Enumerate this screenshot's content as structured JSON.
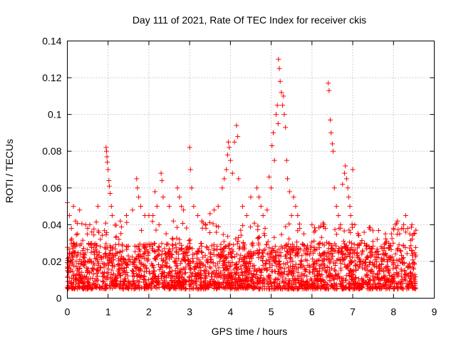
{
  "chart_data": {
    "type": "scatter",
    "title": "Day 111 of 2021, Rate Of TEC Index for receiver ckis",
    "xlabel": "GPS time / hours",
    "ylabel": "ROTI / TECUs",
    "xlim": [
      0,
      9
    ],
    "ylim": [
      0,
      0.14
    ],
    "xticks": [
      "0",
      "1",
      "2",
      "3",
      "4",
      "5",
      "6",
      "7",
      "8",
      "9"
    ],
    "yticks": [
      "0",
      "0.02",
      "0.04",
      "0.06",
      "0.08",
      "0.1",
      "0.12",
      "0.14"
    ],
    "grid": true,
    "marker": "+",
    "color": "#ff0000",
    "data_span_hours": [
      0,
      8.55
    ],
    "baseline_band": [
      0.005,
      0.03
    ],
    "series": [
      {
        "name": "ROTI",
        "points": [
          [
            0.0,
            0.052
          ],
          [
            0.05,
            0.045
          ],
          [
            0.1,
            0.038
          ],
          [
            0.15,
            0.05
          ],
          [
            0.2,
            0.042
          ],
          [
            0.25,
            0.035
          ],
          [
            0.3,
            0.048
          ],
          [
            0.45,
            0.04
          ],
          [
            0.5,
            0.038
          ],
          [
            0.55,
            0.04
          ],
          [
            0.6,
            0.036
          ],
          [
            0.75,
            0.05
          ],
          [
            0.95,
            0.082
          ],
          [
            0.96,
            0.08
          ],
          [
            0.97,
            0.077
          ],
          [
            0.98,
            0.074
          ],
          [
            1.0,
            0.07
          ],
          [
            1.02,
            0.064
          ],
          [
            1.03,
            0.061
          ],
          [
            1.05,
            0.057
          ],
          [
            1.08,
            0.05
          ],
          [
            1.1,
            0.045
          ],
          [
            1.3,
            0.042
          ],
          [
            1.45,
            0.045
          ],
          [
            1.6,
            0.048
          ],
          [
            1.7,
            0.065
          ],
          [
            1.72,
            0.06
          ],
          [
            1.75,
            0.055
          ],
          [
            1.8,
            0.05
          ],
          [
            1.9,
            0.045
          ],
          [
            2.0,
            0.045
          ],
          [
            2.1,
            0.045
          ],
          [
            2.15,
            0.058
          ],
          [
            2.2,
            0.05
          ],
          [
            2.25,
            0.04
          ],
          [
            2.3,
            0.068
          ],
          [
            2.32,
            0.064
          ],
          [
            2.35,
            0.055
          ],
          [
            2.5,
            0.05
          ],
          [
            2.6,
            0.042
          ],
          [
            2.7,
            0.06
          ],
          [
            2.75,
            0.055
          ],
          [
            2.8,
            0.05
          ],
          [
            2.85,
            0.048
          ],
          [
            3.0,
            0.082
          ],
          [
            3.02,
            0.07
          ],
          [
            3.05,
            0.06
          ],
          [
            3.1,
            0.05
          ],
          [
            3.2,
            0.045
          ],
          [
            3.3,
            0.042
          ],
          [
            3.4,
            0.038
          ],
          [
            3.5,
            0.046
          ],
          [
            3.6,
            0.048
          ],
          [
            3.7,
            0.05
          ],
          [
            3.8,
            0.06
          ],
          [
            3.85,
            0.065
          ],
          [
            3.9,
            0.07
          ],
          [
            3.93,
            0.078
          ],
          [
            3.95,
            0.085
          ],
          [
            3.97,
            0.082
          ],
          [
            4.0,
            0.075
          ],
          [
            4.05,
            0.068
          ],
          [
            4.1,
            0.085
          ],
          [
            4.15,
            0.094
          ],
          [
            4.18,
            0.088
          ],
          [
            4.2,
            0.065
          ],
          [
            4.3,
            0.05
          ],
          [
            4.4,
            0.045
          ],
          [
            4.5,
            0.055
          ],
          [
            4.65,
            0.06
          ],
          [
            4.7,
            0.055
          ],
          [
            4.75,
            0.05
          ],
          [
            4.8,
            0.045
          ],
          [
            4.85,
            0.038
          ],
          [
            4.9,
            0.048
          ],
          [
            4.95,
            0.066
          ],
          [
            5.0,
            0.06
          ],
          [
            5.02,
            0.083
          ],
          [
            5.05,
            0.09
          ],
          [
            5.08,
            0.075
          ],
          [
            5.12,
            0.1
          ],
          [
            5.15,
            0.105
          ],
          [
            5.17,
            0.095
          ],
          [
            5.18,
            0.13
          ],
          [
            5.2,
            0.125
          ],
          [
            5.22,
            0.118
          ],
          [
            5.25,
            0.112
          ],
          [
            5.28,
            0.105
          ],
          [
            5.3,
            0.11
          ],
          [
            5.32,
            0.1
          ],
          [
            5.35,
            0.093
          ],
          [
            5.38,
            0.075
          ],
          [
            5.4,
            0.065
          ],
          [
            5.45,
            0.058
          ],
          [
            5.5,
            0.045
          ],
          [
            5.55,
            0.055
          ],
          [
            5.6,
            0.05
          ],
          [
            5.65,
            0.045
          ],
          [
            5.7,
            0.038
          ],
          [
            5.8,
            0.035
          ],
          [
            6.0,
            0.04
          ],
          [
            6.2,
            0.03
          ],
          [
            6.4,
            0.117
          ],
          [
            6.42,
            0.113
          ],
          [
            6.45,
            0.097
          ],
          [
            6.47,
            0.09
          ],
          [
            6.5,
            0.084
          ],
          [
            6.52,
            0.08
          ],
          [
            6.55,
            0.06
          ],
          [
            6.6,
            0.05
          ],
          [
            6.65,
            0.045
          ],
          [
            6.7,
            0.04
          ],
          [
            6.75,
            0.062
          ],
          [
            6.8,
            0.068
          ],
          [
            6.82,
            0.072
          ],
          [
            6.85,
            0.065
          ],
          [
            6.88,
            0.06
          ],
          [
            6.9,
            0.055
          ],
          [
            6.93,
            0.05
          ],
          [
            6.95,
            0.045
          ],
          [
            7.0,
            0.07
          ],
          [
            7.05,
            0.04
          ],
          [
            7.2,
            0.03
          ],
          [
            7.4,
            0.028
          ],
          [
            7.6,
            0.032
          ],
          [
            7.8,
            0.03
          ],
          [
            7.95,
            0.035
          ],
          [
            8.0,
            0.038
          ],
          [
            8.05,
            0.04
          ],
          [
            8.1,
            0.042
          ],
          [
            8.15,
            0.035
          ],
          [
            8.2,
            0.038
          ],
          [
            8.25,
            0.04
          ],
          [
            8.3,
            0.045
          ],
          [
            8.35,
            0.038
          ],
          [
            8.4,
            0.035
          ],
          [
            8.45,
            0.04
          ],
          [
            8.5,
            0.035
          ],
          [
            8.55,
            0.037
          ]
        ]
      }
    ]
  }
}
